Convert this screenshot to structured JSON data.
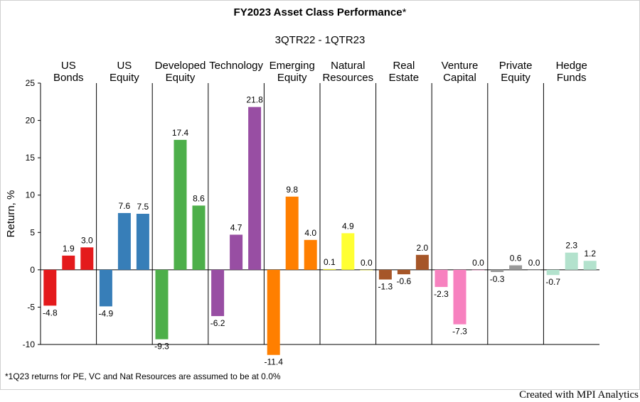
{
  "chart_data": {
    "type": "bar",
    "title": "FY2023 Asset Class Performance",
    "title_mark": "*",
    "subtitle": "3QTR22 - 1QTR23",
    "ylabel": "Return, %",
    "ylim": [
      -10,
      25
    ],
    "yticks": [
      -10,
      -5,
      0,
      5,
      10,
      15,
      20,
      25
    ],
    "grid": false,
    "legend": "none",
    "groups": [
      {
        "label": [
          "US",
          "Bonds"
        ],
        "color": "#e41a1c",
        "values": [
          -4.8,
          1.9,
          3.0
        ],
        "labels": [
          "-4.8",
          "1.9",
          "3.0"
        ]
      },
      {
        "label": [
          "US",
          "Equity"
        ],
        "color": "#377eb8",
        "values": [
          -4.9,
          7.6,
          7.5
        ],
        "labels": [
          "-4.9",
          "7.6",
          "7.5"
        ]
      },
      {
        "label": [
          "Developed",
          "Equity"
        ],
        "color": "#4daf4a",
        "values": [
          -9.3,
          17.4,
          8.6
        ],
        "labels": [
          "-9.3",
          "17.4",
          "8.6"
        ]
      },
      {
        "label": [
          "Technology"
        ],
        "color": "#984ea3",
        "values": [
          -6.2,
          4.7,
          21.8
        ],
        "labels": [
          "-6.2",
          "4.7",
          "21.8"
        ]
      },
      {
        "label": [
          "Emerging",
          "Equity"
        ],
        "color": "#ff7f00",
        "values": [
          -11.4,
          9.8,
          4.0
        ],
        "labels": [
          "-11.4",
          "9.8",
          "4.0"
        ]
      },
      {
        "label": [
          "Natural",
          "Resources"
        ],
        "color": "#ffff33",
        "values": [
          0.1,
          4.9,
          0.0
        ],
        "labels": [
          "0.1",
          "4.9",
          "0.0"
        ]
      },
      {
        "label": [
          "Real",
          "Estate"
        ],
        "color": "#a65628",
        "values": [
          -1.3,
          -0.6,
          2.0
        ],
        "labels": [
          "-1.3",
          "-0.6",
          "2.0"
        ]
      },
      {
        "label": [
          "Venture",
          "Capital"
        ],
        "color": "#f781bf",
        "values": [
          -2.3,
          -7.3,
          0.0
        ],
        "labels": [
          "-2.3",
          "-7.3",
          "0.0"
        ]
      },
      {
        "label": [
          "Private",
          "Equity"
        ],
        "color": "#999999",
        "values": [
          -0.3,
          0.6,
          0.0
        ],
        "labels": [
          "-0.3",
          "0.6",
          "0.0"
        ]
      },
      {
        "label": [
          "Hedge",
          "Funds"
        ],
        "color": "#b3e2cd",
        "values": [
          -0.7,
          2.3,
          1.2
        ],
        "labels": [
          "-0.7",
          "2.3",
          "1.2"
        ]
      }
    ]
  },
  "footnote": "*1Q23 returns for PE, VC and Nat Resources are assumed to be at 0.0%",
  "credit": "Created with MPI Analytics"
}
